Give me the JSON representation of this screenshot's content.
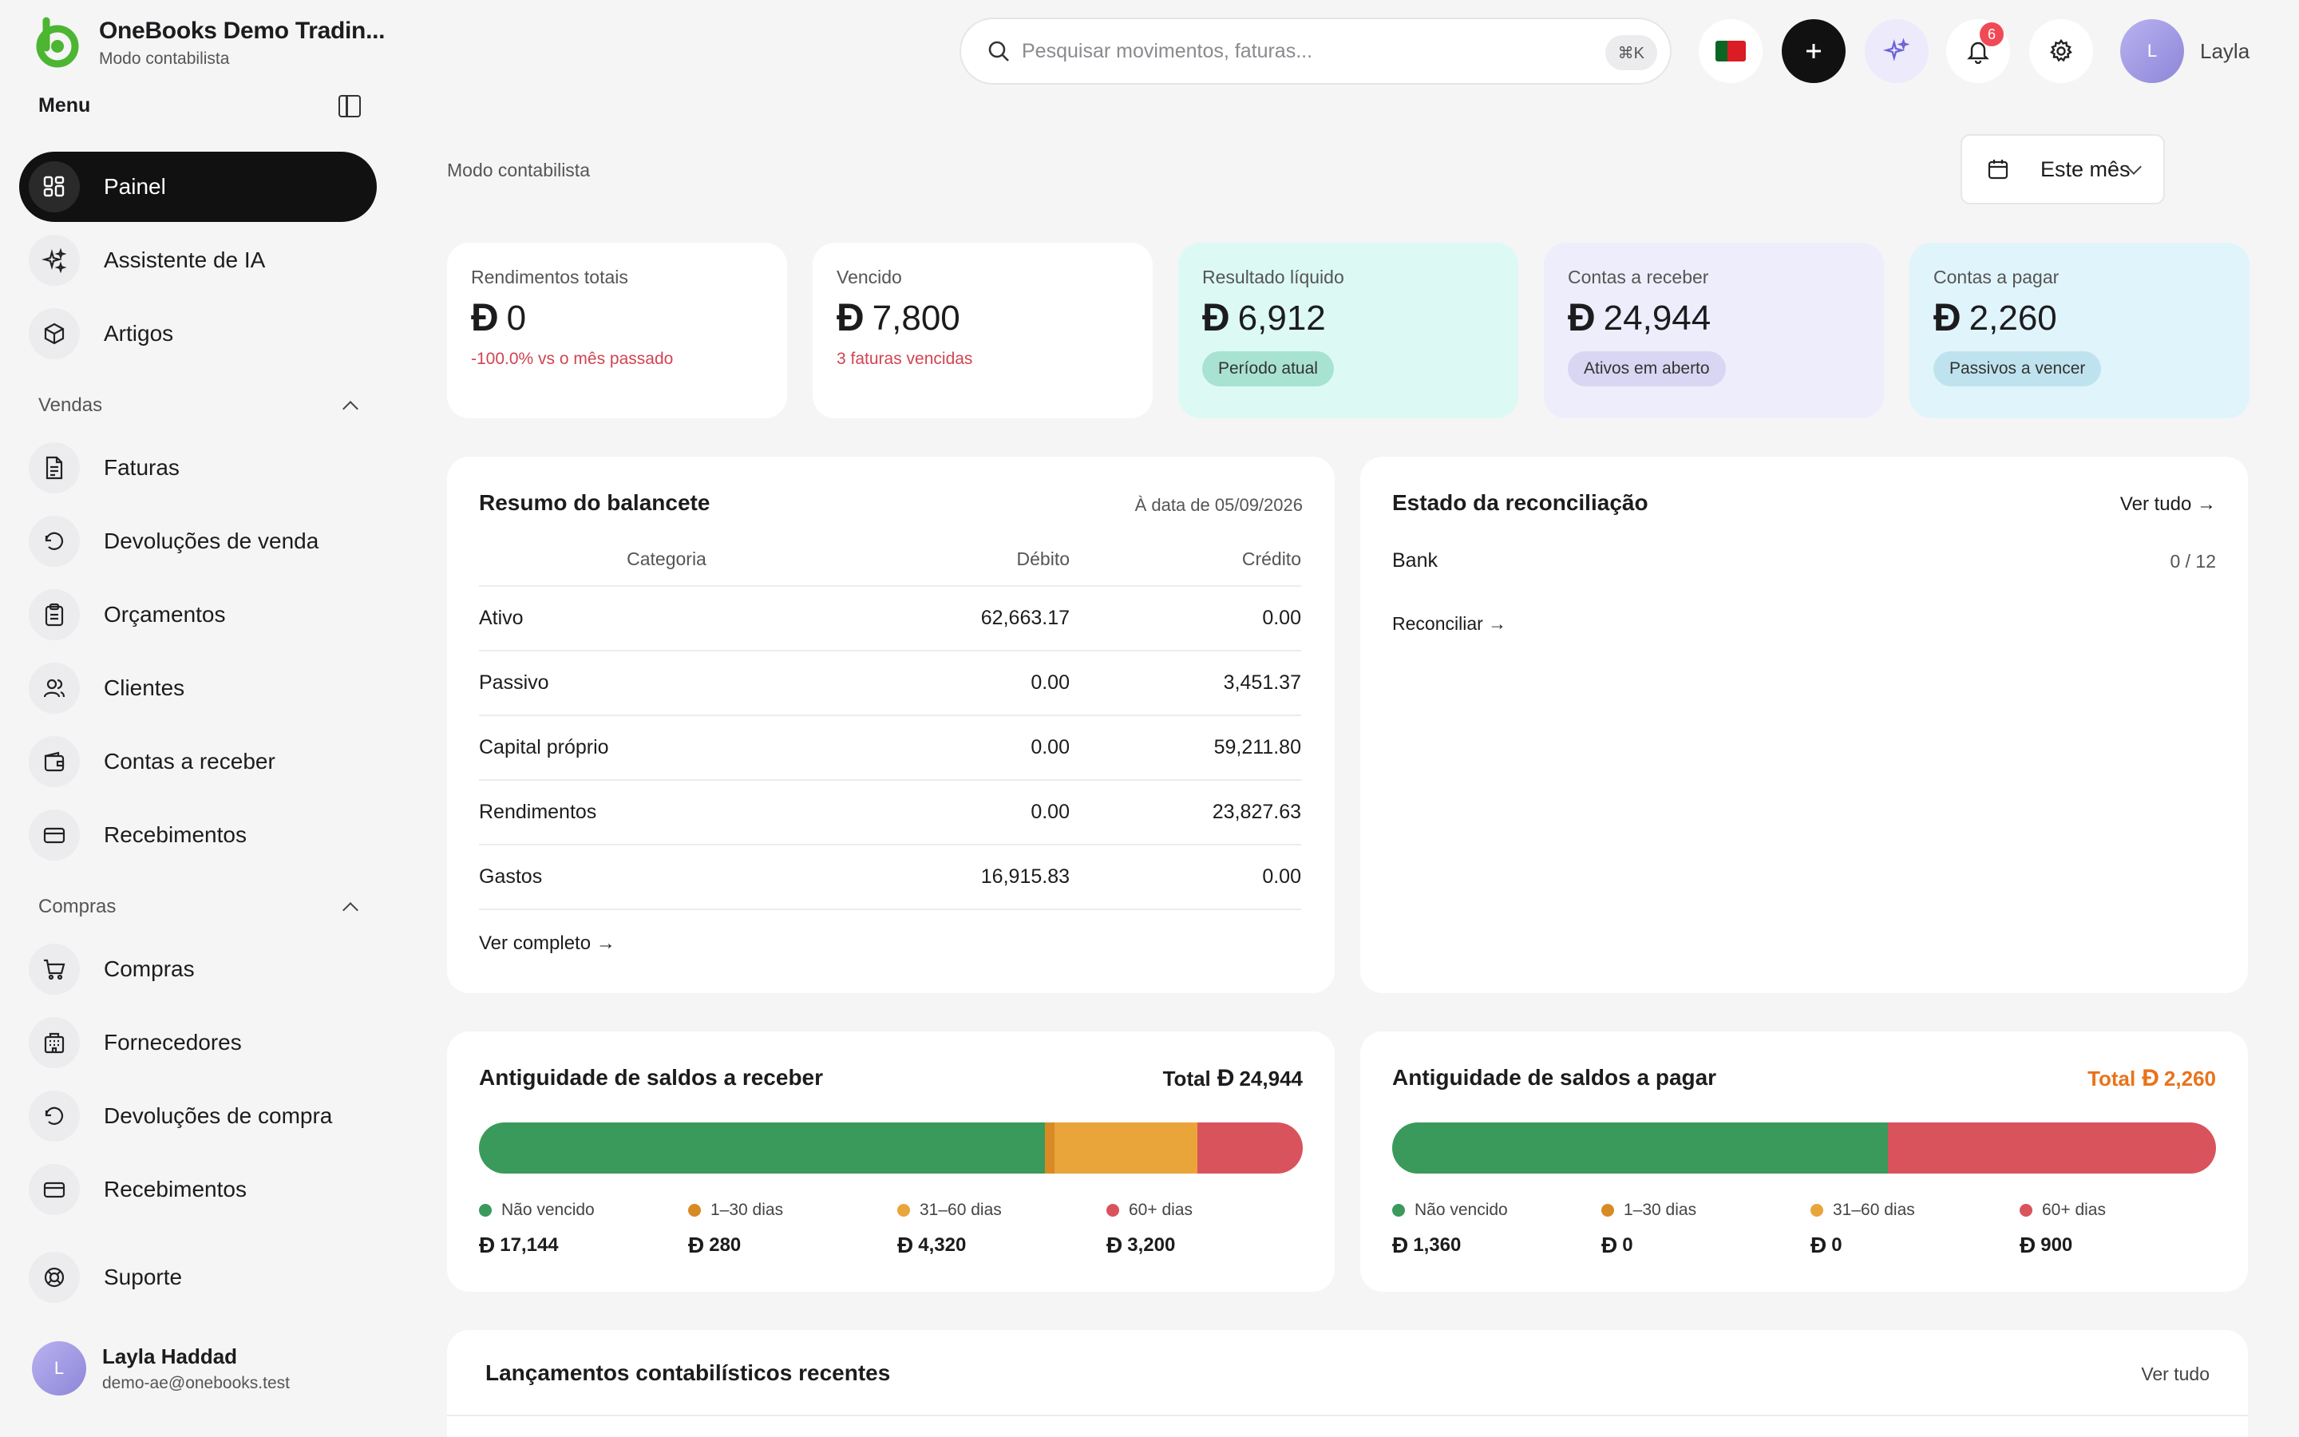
{
  "brand": {
    "name": "OneBooks Demo Tradin...",
    "subtitle": "Modo contabilista"
  },
  "sidebar": {
    "menu_label": "Menu",
    "main_items": [
      {
        "label": "Painel",
        "icon": "dashboard-icon",
        "active": true
      },
      {
        "label": "Assistente de IA",
        "icon": "sparkles-icon"
      },
      {
        "label": "Artigos",
        "icon": "box-icon"
      }
    ],
    "sales_section": "Vendas",
    "sales_items": [
      {
        "label": "Faturas",
        "icon": "invoice-icon"
      },
      {
        "label": "Devoluções de venda",
        "icon": "return-icon"
      },
      {
        "label": "Orçamentos",
        "icon": "clipboard-icon"
      },
      {
        "label": "Clientes",
        "icon": "users-icon"
      },
      {
        "label": "Contas a receber",
        "icon": "wallet-icon"
      },
      {
        "label": "Recebimentos",
        "icon": "card-icon"
      }
    ],
    "purchases_section": "Compras",
    "purchase_items": [
      {
        "label": "Compras",
        "icon": "cart-icon"
      },
      {
        "label": "Fornecedores",
        "icon": "building-icon"
      },
      {
        "label": "Devoluções de compra",
        "icon": "return-icon"
      },
      {
        "label": "Recebimentos",
        "icon": "card-icon"
      }
    ],
    "support": "Suporte",
    "user": {
      "initial": "L",
      "name": "Layla Haddad",
      "email": "demo-ae@onebooks.test"
    }
  },
  "topbar": {
    "search_placeholder": "Pesquisar movimentos, faturas...",
    "shortcut": "⌘K",
    "notifications_count": "6",
    "user_initial": "L",
    "user_name": "Layla"
  },
  "main": {
    "breadcrumb": "Modo contabilista",
    "period": "Este mês",
    "currency_symbol": "Ð",
    "kpis": [
      {
        "label": "Rendimentos totais",
        "value": "0",
        "note": "-100.0% vs o mês passado"
      },
      {
        "label": "Vencido",
        "value": "7,800",
        "note": "3 faturas vencidas"
      },
      {
        "label": "Resultado líquido",
        "value": "6,912",
        "pill": "Período atual"
      },
      {
        "label": "Contas a receber",
        "value": "24,944",
        "pill": "Ativos em aberto"
      },
      {
        "label": "Contas a pagar",
        "value": "2,260",
        "pill": "Passivos a vencer"
      }
    ],
    "balance": {
      "title": "Resumo do balancete",
      "date": "À data de 05/09/2026",
      "headers": [
        "Categoria",
        "Débito",
        "Crédito"
      ],
      "rows": [
        {
          "category": "Ativo",
          "debit": "62,663.17",
          "credit": "0.00"
        },
        {
          "category": "Passivo",
          "debit": "0.00",
          "credit": "3,451.37"
        },
        {
          "category": "Capital próprio",
          "debit": "0.00",
          "credit": "59,211.80"
        },
        {
          "category": "Rendimentos",
          "debit": "0.00",
          "credit": "23,827.63"
        },
        {
          "category": "Gastos",
          "debit": "16,915.83",
          "credit": "0.00"
        }
      ],
      "link": "Ver completo →"
    },
    "reconciliation": {
      "title": "Estado da reconciliação",
      "view_all": "Ver tudo →",
      "account": "Bank",
      "progress": "0 / 12",
      "action": "Reconciliar →"
    },
    "receivables_aging": {
      "title": "Antiguidade de saldos a receber",
      "total_label": "Total",
      "total": "24,944",
      "buckets": [
        {
          "label": "Não vencido",
          "value": "17,144",
          "amount": 17144,
          "color": "#3a9a5b"
        },
        {
          "label": "1–30 dias",
          "value": "280",
          "amount": 280,
          "color": "#d88a25"
        },
        {
          "label": "31–60 dias",
          "value": "4,320",
          "amount": 4320,
          "color": "#e9a43a"
        },
        {
          "label": "60+ dias",
          "value": "3,200",
          "amount": 3200,
          "color": "#d9535c"
        }
      ]
    },
    "payables_aging": {
      "title": "Antiguidade de saldos a pagar",
      "total_label": "Total",
      "total": "2,260",
      "buckets": [
        {
          "label": "Não vencido",
          "value": "1,360",
          "amount": 1360,
          "color": "#3a9a5b"
        },
        {
          "label": "1–30 dias",
          "value": "0",
          "amount": 0,
          "color": "#d88a25"
        },
        {
          "label": "31–60 dias",
          "value": "0",
          "amount": 0,
          "color": "#e9a43a"
        },
        {
          "label": "60+ dias",
          "value": "900",
          "amount": 900,
          "color": "#d9535c"
        }
      ]
    },
    "recent": {
      "title": "Lançamentos contabilísticos recentes",
      "view_all": "Ver tudo"
    }
  },
  "colors": {
    "active_nav": "#111111",
    "net_result_bg": "#dcfaf3",
    "receivable_bg": "#eeedfb",
    "payable_bg": "#e0f4fb",
    "negative": "#d04451",
    "payables_total": "#e8731c"
  }
}
